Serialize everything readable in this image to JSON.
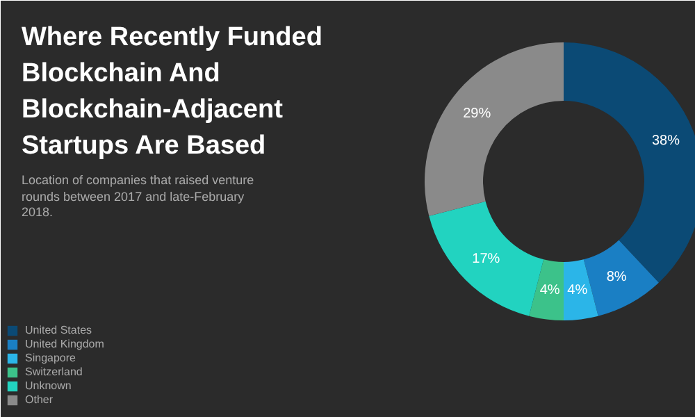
{
  "chart_data": {
    "type": "donut",
    "title": "Where Recently Funded Blockchain And Blockchain-Adjacent Startups Are Based",
    "subtitle": "Location of companies that raised venture rounds between 2017 and late-February 2018.",
    "categories": [
      "United States",
      "United Kingdom",
      "Singapore",
      "Switzerland",
      "Unknown",
      "Other"
    ],
    "values": [
      38,
      8,
      4,
      4,
      17,
      29
    ],
    "colors": [
      "#0b4a75",
      "#1a7fc4",
      "#2bb5e8",
      "#3cc28a",
      "#22d3c0",
      "#8a8a8a"
    ],
    "value_labels": [
      "38%",
      "8%",
      "4%",
      "4%",
      "17%",
      "29%"
    ],
    "legend": "left"
  }
}
